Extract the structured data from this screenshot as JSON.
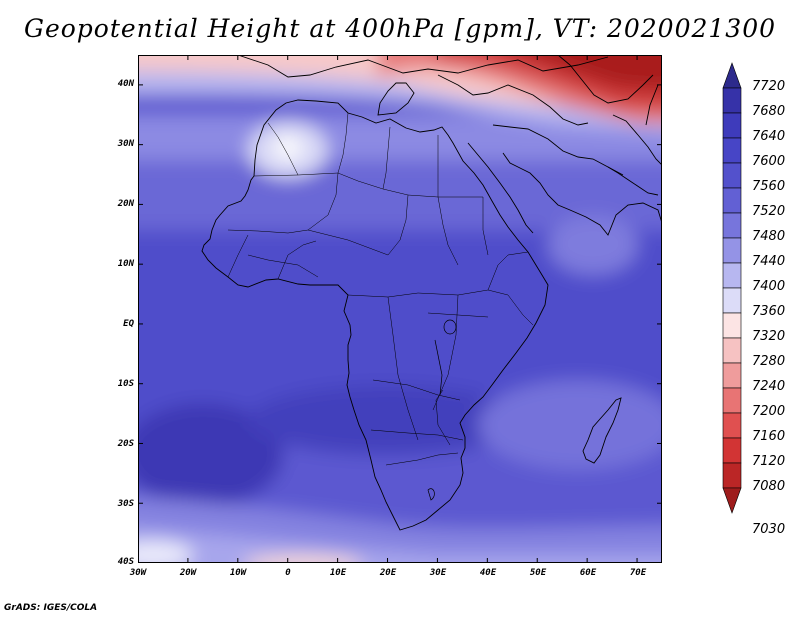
{
  "title": "Geopotential Height at 400hPa [gpm], VT: 2020021300",
  "map": {
    "variable": "Geopotential Height",
    "level": "400hPa",
    "units": "gpm",
    "valid_time": "2020021300",
    "lon_range": [
      -30,
      75
    ],
    "lat_range": [
      -40,
      45
    ]
  },
  "axes": {
    "lat_labels": [
      "40N",
      "30N",
      "20N",
      "10N",
      "EQ",
      "10S",
      "20S",
      "30S",
      "40S"
    ],
    "lat_values": [
      40,
      30,
      20,
      10,
      0,
      -10,
      -20,
      -30,
      -40
    ],
    "lon_labels": [
      "30W",
      "20W",
      "10W",
      "0",
      "10E",
      "20E",
      "30E",
      "40E",
      "50E",
      "60E",
      "70E"
    ],
    "lon_values": [
      -30,
      -20,
      -10,
      0,
      10,
      20,
      30,
      40,
      50,
      60,
      70
    ]
  },
  "colorbar": {
    "labels": [
      "7720",
      "7680",
      "7640",
      "7600",
      "7560",
      "7520",
      "7480",
      "7440",
      "7400",
      "7360",
      "7320",
      "7280",
      "7240",
      "7200",
      "7160",
      "7120",
      "7080",
      "7030"
    ],
    "colors": [
      "#2d2a8c",
      "#3632a8",
      "#3e3bbb",
      "#4745c6",
      "#5351cc",
      "#6260d4",
      "#7775dc",
      "#9493e6",
      "#b7b7f0",
      "#dcdcf8",
      "#fce4e4",
      "#f6c2c2",
      "#ef9c9c",
      "#e87474",
      "#e05050",
      "#d23434",
      "#bb2626",
      "#9e1c1c"
    ]
  },
  "credit": "GrADS: IGES/COLA"
}
